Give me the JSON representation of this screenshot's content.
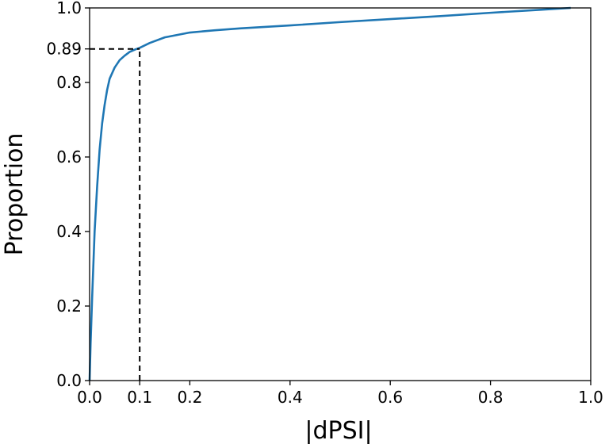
{
  "chart_data": {
    "type": "line",
    "xlabel": "|dPSI|",
    "ylabel": "Proportion",
    "xlim": [
      0.0,
      1.0
    ],
    "ylim": [
      0.0,
      1.0
    ],
    "grid": false,
    "x_ticks": [
      "0.0",
      "0.1",
      "0.2",
      "0.4",
      "0.6",
      "0.8",
      "1.0"
    ],
    "x_tick_values": [
      0.0,
      0.1,
      0.2,
      0.4,
      0.6,
      0.8,
      1.0
    ],
    "y_ticks": [
      "0.0",
      "0.2",
      "0.4",
      "0.6",
      "0.8",
      "0.89",
      "1.0"
    ],
    "y_tick_values": [
      0.0,
      0.2,
      0.4,
      0.6,
      0.8,
      0.89,
      1.0
    ],
    "series": [
      {
        "color": "#1f77b4",
        "x": [
          0.0,
          0.002,
          0.005,
          0.01,
          0.015,
          0.02,
          0.025,
          0.03,
          0.035,
          0.04,
          0.05,
          0.06,
          0.07,
          0.08,
          0.09,
          0.1,
          0.12,
          0.15,
          0.2,
          0.25,
          0.3,
          0.4,
          0.5,
          0.6,
          0.7,
          0.8,
          0.9,
          0.96
        ],
        "y": [
          0.0,
          0.1,
          0.22,
          0.4,
          0.52,
          0.62,
          0.69,
          0.74,
          0.78,
          0.81,
          0.84,
          0.86,
          0.872,
          0.882,
          0.888,
          0.893,
          0.906,
          0.921,
          0.934,
          0.94,
          0.945,
          0.953,
          0.962,
          0.97,
          0.978,
          0.987,
          0.995,
          1.0
        ]
      }
    ],
    "reference": {
      "x": 0.1,
      "y": 0.89,
      "style": "dashed",
      "color": "#000000"
    }
  }
}
